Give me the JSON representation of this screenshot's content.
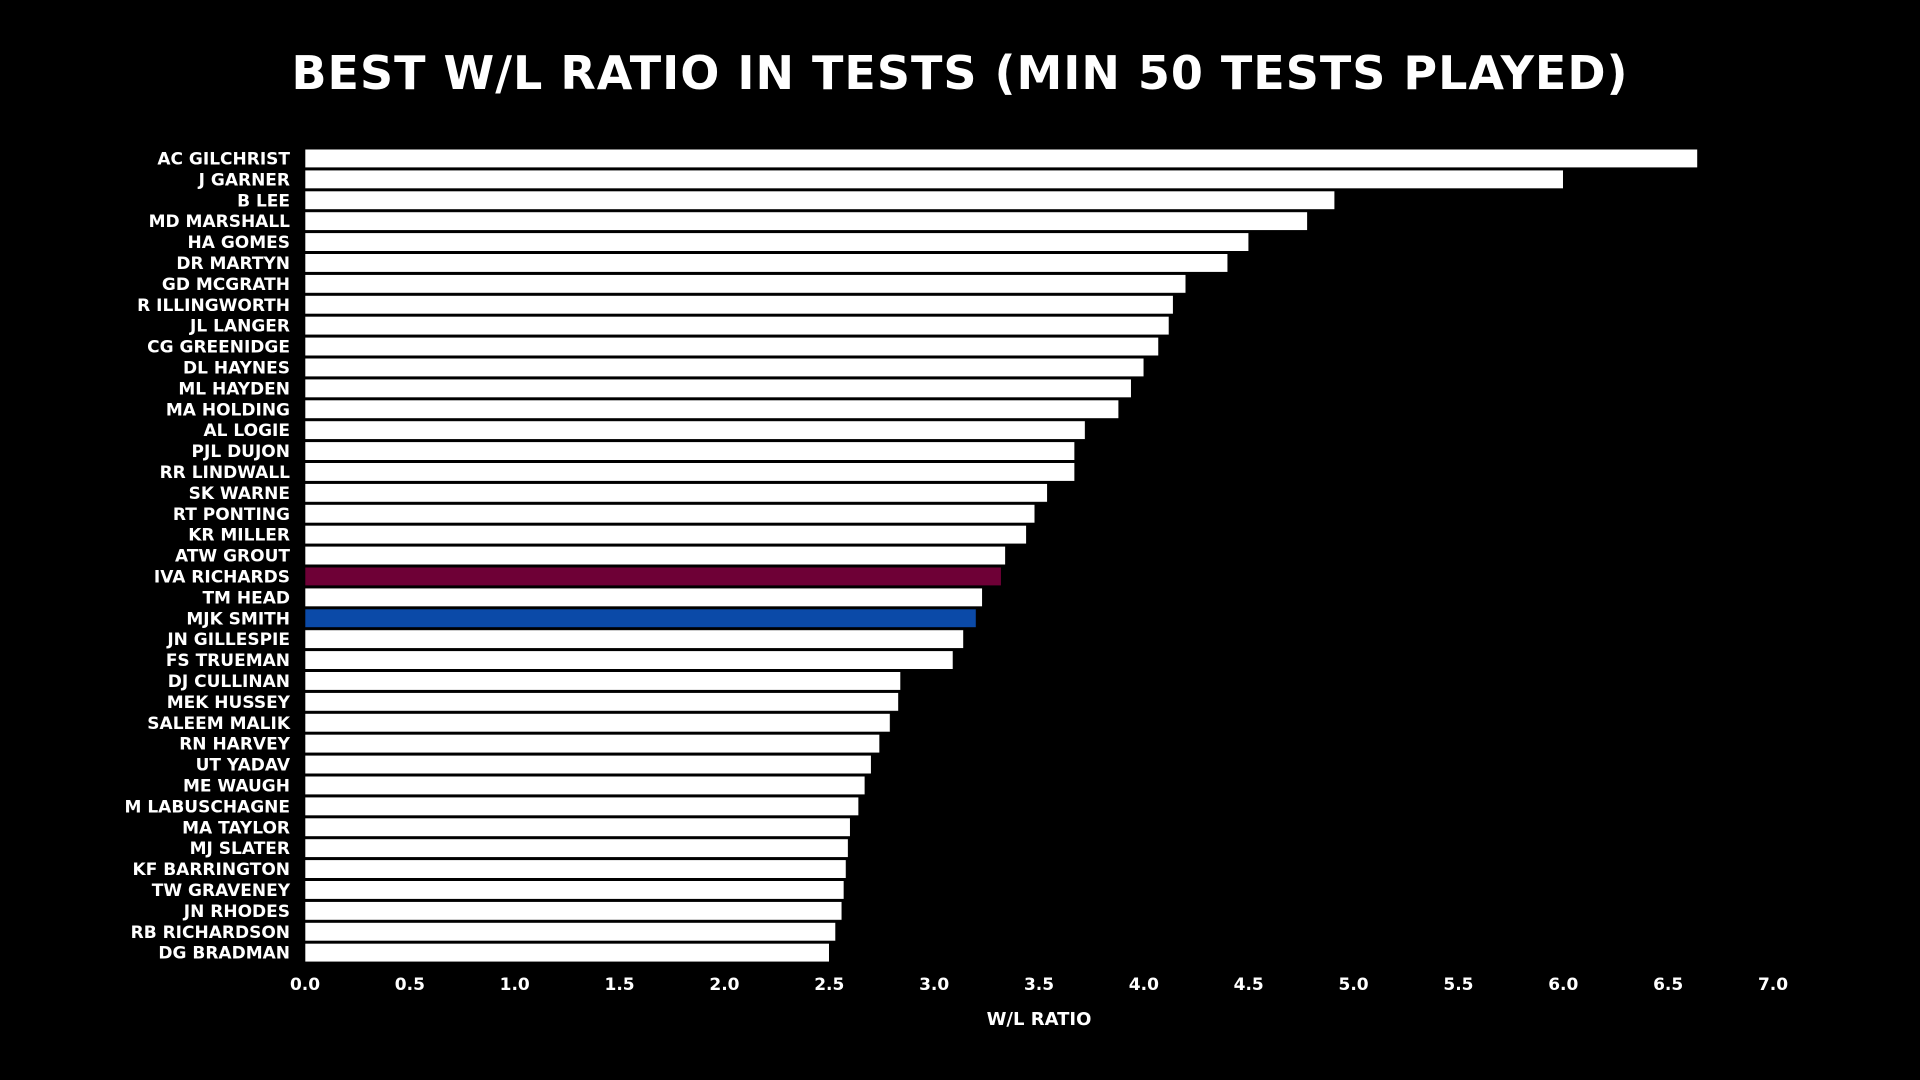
{
  "chart_data": {
    "type": "bar",
    "orientation": "horizontal",
    "title": "BEST W/L RATIO IN TESTS (MIN 50 TESTS PLAYED)",
    "xlabel": "W/L RATIO",
    "ylabel": "",
    "xlim": [
      0,
      7
    ],
    "xticks": [
      "0.0",
      "0.5",
      "1.0",
      "1.5",
      "2.0",
      "2.5",
      "3.0",
      "3.5",
      "4.0",
      "4.5",
      "5.0",
      "5.5",
      "6.0",
      "6.5",
      "7.0"
    ],
    "grid": false,
    "categories": [
      "AC GILCHRIST",
      "J GARNER",
      "B LEE",
      "MD MARSHALL",
      "HA GOMES",
      "DR MARTYN",
      "GD MCGRATH",
      "R ILLINGWORTH",
      "JL LANGER",
      "CG GREENIDGE",
      "DL HAYNES",
      "ML HAYDEN",
      "MA HOLDING",
      "AL LOGIE",
      "PJL DUJON",
      "RR LINDWALL",
      "SK WARNE",
      "RT PONTING",
      "KR MILLER",
      "ATW GROUT",
      "IVA RICHARDS",
      "TM HEAD",
      "MJK SMITH",
      "JN GILLESPIE",
      "FS TRUEMAN",
      "DJ CULLINAN",
      "MEK HUSSEY",
      "SALEEM MALIK",
      "RN HARVEY",
      "UT YADAV",
      "ME WAUGH",
      "M LABUSCHAGNE",
      "MA TAYLOR",
      "MJ SLATER",
      "KF BARRINGTON",
      "TW GRAVENEY",
      "JN RHODES",
      "RB RICHARDSON",
      "DG BRADMAN"
    ],
    "values": [
      6.64,
      6.0,
      4.91,
      4.78,
      4.5,
      4.4,
      4.2,
      4.14,
      4.12,
      4.07,
      4.0,
      3.94,
      3.88,
      3.72,
      3.67,
      3.67,
      3.54,
      3.48,
      3.44,
      3.34,
      3.32,
      3.23,
      3.2,
      3.14,
      3.09,
      2.84,
      2.83,
      2.79,
      2.74,
      2.7,
      2.67,
      2.64,
      2.6,
      2.59,
      2.58,
      2.57,
      2.56,
      2.53,
      2.5
    ],
    "colors": {
      "default": "#ffffff",
      "highlights": {
        "IVA RICHARDS": "#6e0036",
        "MJK SMITH": "#0b4aa8"
      },
      "background": "#000000",
      "bar_edge": "#000000"
    }
  }
}
